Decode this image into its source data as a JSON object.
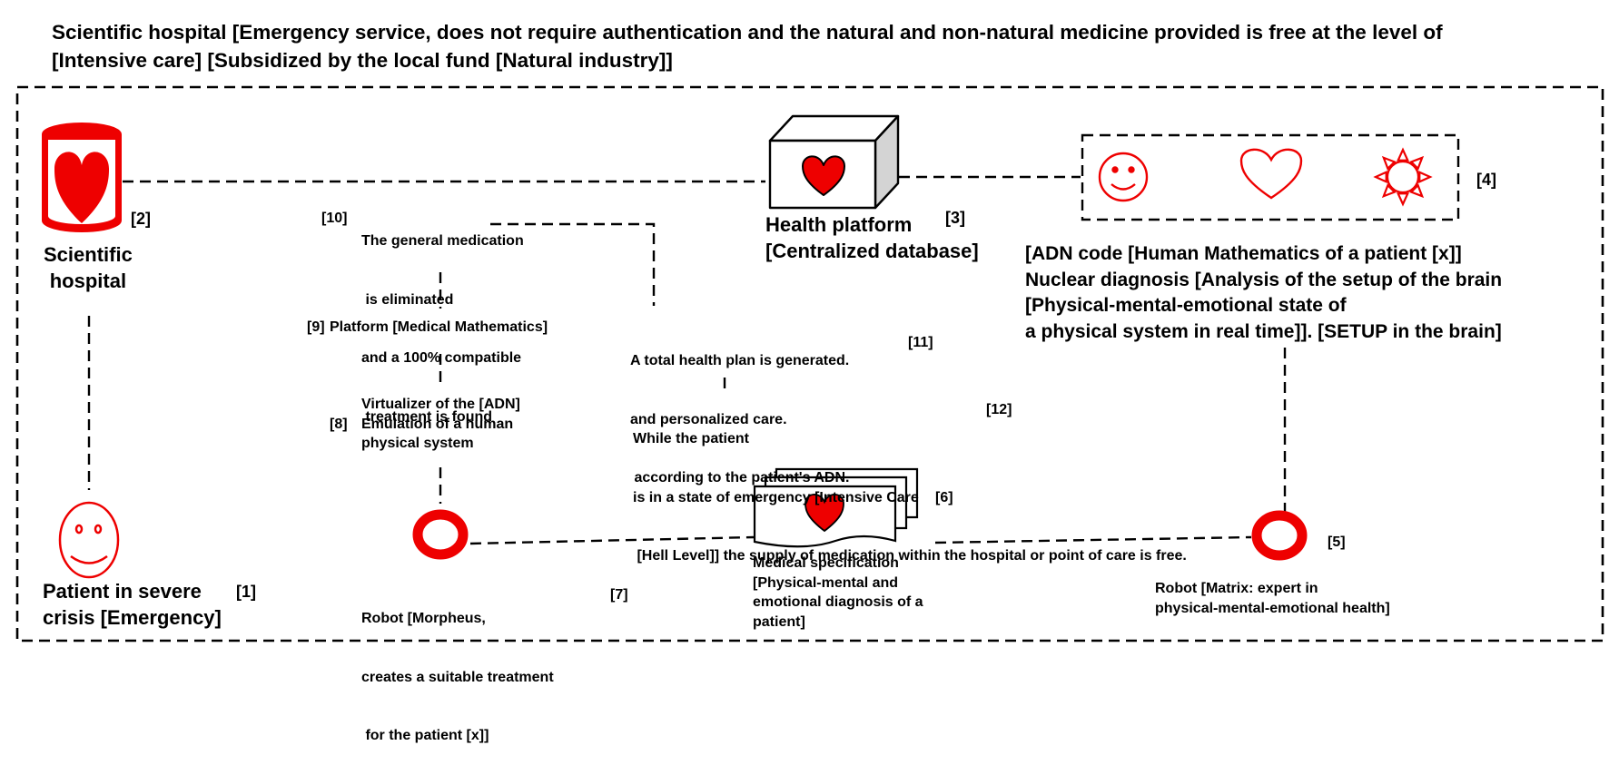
{
  "title_lines": [
    "Scientific hospital [Emergency service, does not require authentication and the natural and non-natural medicine provided is free at the level of",
    "[Intensive care] [Subsidized by the local fund [Natural industry]]"
  ],
  "nodes": {
    "hospital": {
      "label_lines": [
        "Scientific",
        "hospital"
      ],
      "ref": "[2]"
    },
    "patient": {
      "label_lines": [
        "Patient in severe",
        "crisis [Emergency]"
      ],
      "ref": "[1]"
    },
    "platform": {
      "label_lines": [
        "Health platform",
        "[Centralized database]"
      ],
      "ref": "[3]"
    },
    "adn": {
      "ref": "[4]",
      "text_lines": [
        "[ADN code [Human Mathematics of a patient [x]]",
        "Nuclear diagnosis [Analysis of the setup of the brain",
        "[Physical-mental-emotional state of",
        "a physical system in real time]]. [SETUP in the brain]"
      ]
    },
    "medication": {
      "ref": "[10]",
      "text_lines": [
        "The general medication",
        " is eliminated",
        "and a 100% compatible",
        " treatment is found"
      ]
    },
    "math_platform": {
      "ref": "[9]",
      "label": "Platform [Medical Mathematics]"
    },
    "virtualizer": {
      "ref": "[8]",
      "text_lines": [
        "Virtualizer of the [ADN]",
        "Emulation of a human",
        "physical system"
      ]
    },
    "morpheus": {
      "ref": "[7]",
      "text_lines": [
        "Robot [Morpheus,",
        "creates a suitable treatment",
        " for the patient [x]]"
      ]
    },
    "health_plan": {
      "ref": "[11]",
      "text_lines": [
        "A total health plan is generated.",
        "and personalized care.",
        " according to the patient's ADN."
      ]
    },
    "emergency": {
      "ref": "[12]",
      "text_lines": [
        "While the patient",
        "is in a state of emergency [Intensive Care",
        " [Hell Level]] the supply of medication within the hospital or point of care is free."
      ]
    },
    "spec": {
      "ref": "[6]",
      "text_lines": [
        "Medical specification",
        "[Physical-mental and",
        "emotional diagnosis of a",
        "patient]"
      ]
    },
    "matrix": {
      "ref": "[5]",
      "text_lines": [
        "Robot [Matrix: expert in",
        "physical-mental-emotional health]"
      ]
    }
  },
  "icons": [
    "heart-container-icon",
    "smiley-face-icon",
    "heart-box-icon",
    "smiley-outline-icon",
    "heart-outline-icon",
    "sun-icon",
    "robot-ring-icon",
    "document-stack-icon"
  ],
  "colors": {
    "accent": "#ee0000",
    "line": "#000000",
    "box_side": "#d4d4d4"
  }
}
